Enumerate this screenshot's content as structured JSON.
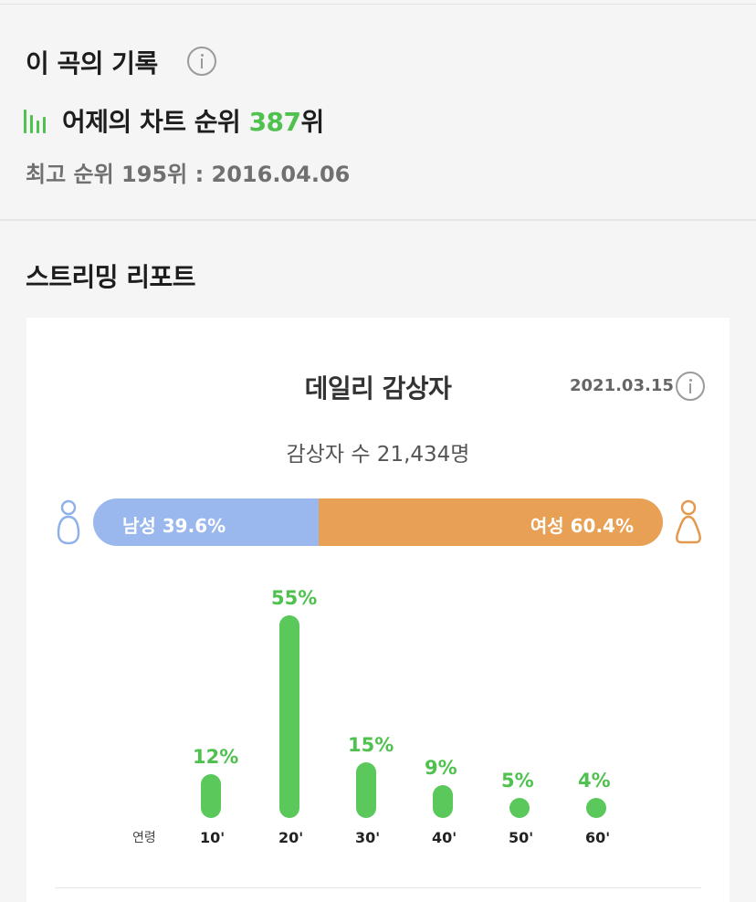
{
  "record": {
    "title": "이 곡의 기록",
    "yesterday_rank_prefix": "어제의 차트 순위 ",
    "yesterday_rank": "387",
    "yesterday_rank_suffix": "위",
    "best_rank": "최고 순위 195위 : 2016.04.06"
  },
  "report": {
    "title": "스트리밍 리포트",
    "daily_title": "데일리 감상자",
    "date": "2021.03.15",
    "listener_count": "감상자 수 21,434명",
    "gender": {
      "male_label": "남성 39.6%",
      "female_label": "여성 60.4%",
      "male_pct": 39.6,
      "female_pct": 60.4,
      "male_color": "#9bb8ee",
      "female_color": "#e8a054"
    },
    "age_axis_label": "연령",
    "accent_color": "#4fc14f"
  },
  "chart_data": {
    "type": "bar",
    "categories": [
      "10'",
      "20'",
      "30'",
      "40'",
      "50'",
      "60'"
    ],
    "values": [
      12,
      55,
      15,
      9,
      5,
      4
    ],
    "value_labels": [
      "12%",
      "55%",
      "15%",
      "9%",
      "5%",
      "4%"
    ],
    "xlabel": "연령",
    "ylabel": "",
    "ylim": [
      0,
      55
    ]
  },
  "icons": {
    "record_info": "info-icon",
    "chart_rank": "bar-chart-icon",
    "date_info": "info-icon",
    "male": "male-person-icon",
    "female": "female-person-icon"
  }
}
